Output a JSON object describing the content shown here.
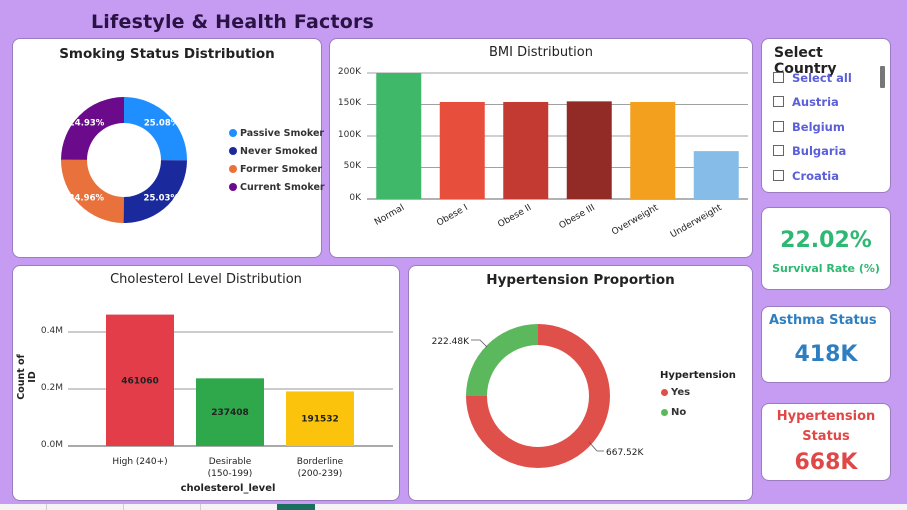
{
  "page": {
    "title": "Lifestyle & Health Factors"
  },
  "colors": {
    "background": "#c69cf2",
    "smoking": [
      "#1f8fff",
      "#1a2a9c",
      "#e8713c",
      "#6b0b8c"
    ],
    "bmi": [
      "#3fb86a",
      "#e84e3c",
      "#c23a32",
      "#922b26",
      "#f2a01e",
      "#86bde8"
    ],
    "cholesterol": [
      "#e23d49",
      "#2ea84a",
      "#fbc30b"
    ],
    "hypertension": [
      "#e0504a",
      "#5cb85c"
    ],
    "survival": "#2eb872",
    "asthma": "#2e7fc1",
    "hypertension_kpi": "#e04848"
  },
  "smoking_card": {
    "title": "Smoking Status Distribution",
    "legend": [
      {
        "label": "Passive Smoker",
        "color": "#1f8fff"
      },
      {
        "label": "Never Smoked",
        "color": "#1a2a9c"
      },
      {
        "label": "Former Smoker",
        "color": "#e8713c"
      },
      {
        "label": "Current Smoker",
        "color": "#6b0b8c"
      }
    ],
    "slice_labels": [
      "25.08%",
      "25.03%",
      "24.96%",
      "24.93%"
    ]
  },
  "bmi_card": {
    "title": "BMI Distribution",
    "y_ticks": [
      "200K",
      "150K",
      "100K",
      "50K",
      "0K"
    ]
  },
  "cholesterol_card": {
    "title": "Cholesterol Level Distribution",
    "ylabel": "Count of ID",
    "xlabel": "cholesterol_level",
    "y_ticks": [
      "0.4M",
      "0.2M",
      "0.0M"
    ],
    "categories": [
      {
        "line1": "High (240+)",
        "line2": ""
      },
      {
        "line1": "Desirable",
        "line2": "(150-199)"
      },
      {
        "line1": "Borderline",
        "line2": "(200-239)"
      }
    ],
    "data_labels": [
      "461060",
      "237408",
      "191532"
    ]
  },
  "hypertension_card": {
    "title": "Hypertension Proportion",
    "legend_title": "Hypertension",
    "legend": [
      {
        "label": "Yes",
        "color": "#e0504a"
      },
      {
        "label": "No",
        "color": "#5cb85c"
      }
    ],
    "slice_labels": {
      "no": "222.48K",
      "yes": "667.52K"
    }
  },
  "country_slicer": {
    "title": "Select Country",
    "options": [
      "Select all",
      "Austria",
      "Belgium",
      "Bulgaria",
      "Croatia"
    ]
  },
  "kpis": {
    "survival": {
      "value": "22.02%",
      "label": "Survival Rate (%)"
    },
    "asthma": {
      "label": "Asthma Status",
      "value": "418K"
    },
    "hypertension": {
      "label_line1": "Hypertension",
      "label_line2": "Status",
      "value": "668K"
    }
  },
  "chart_data": [
    {
      "type": "pie",
      "title": "Smoking Status Distribution",
      "categories": [
        "Passive Smoker",
        "Never Smoked",
        "Former Smoker",
        "Current Smoker"
      ],
      "values": [
        25.08,
        25.03,
        24.96,
        24.93
      ],
      "unit": "%",
      "donut": true,
      "legend": "right"
    },
    {
      "type": "bar",
      "title": "BMI Distribution",
      "categories": [
        "Normal",
        "Obese I",
        "Obese II",
        "Obese III",
        "Overweight",
        "Underweight"
      ],
      "values": [
        200000,
        154000,
        154000,
        155000,
        154000,
        76000
      ],
      "ylim": [
        0,
        200000
      ],
      "grid": true
    },
    {
      "type": "bar",
      "title": "Cholesterol Level Distribution",
      "categories": [
        "High (240+)",
        "Desirable (150-199)",
        "Borderline (200-239)"
      ],
      "values": [
        461060,
        237408,
        191532
      ],
      "xlabel": "cholesterol_level",
      "ylabel": "Count of ID",
      "ylim": [
        0,
        500000
      ],
      "grid": true
    },
    {
      "type": "pie",
      "title": "Hypertension Proportion",
      "categories": [
        "Yes",
        "No"
      ],
      "values": [
        667520,
        222480
      ],
      "donut": true,
      "legend": "right"
    }
  ]
}
